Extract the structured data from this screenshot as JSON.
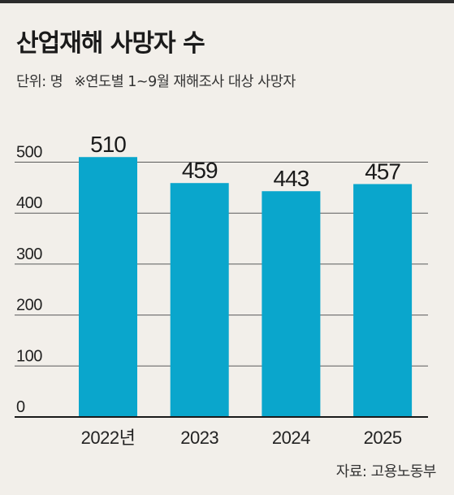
{
  "header": {
    "title": "산업재해 사망자 수",
    "unit": "단위: 명",
    "note": "※연도별 1~9월 재해조사 대상 사망자"
  },
  "footer": {
    "source": "자료: 고용노동부"
  },
  "colors": {
    "bar": "#0aa6cc",
    "background": "#f2efea",
    "grid": "#5a5a5a",
    "text": "#1a1a1a"
  },
  "chart_data": {
    "type": "bar",
    "title": "산업재해 사망자 수",
    "subtitle": "단위: 명  ※연도별 1~9월 재해조사 대상 사망자",
    "categories": [
      "2022년",
      "2023",
      "2024",
      "2025"
    ],
    "values": [
      510,
      459,
      443,
      457
    ],
    "data_labels": [
      "510",
      "459",
      "443",
      "457"
    ],
    "yticks": [
      0,
      100,
      200,
      300,
      400,
      500
    ],
    "ylim": [
      0,
      510
    ],
    "grid": true,
    "legend": "none",
    "source": "자료: 고용노동부"
  }
}
